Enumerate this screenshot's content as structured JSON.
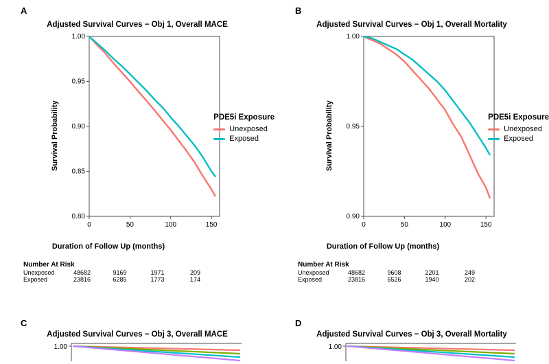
{
  "panels": {
    "A": {
      "letter": "A",
      "title": "Adjusted Survival Curves − Obj 1, Overall MACE",
      "ylabel": "Survival Probability",
      "xlabel": "Duration of Follow Up (months)",
      "ylim": [
        0.8,
        1.0
      ],
      "yticks": [
        0.8,
        0.85,
        0.9,
        0.95,
        1.0
      ],
      "xlim": [
        0,
        160
      ],
      "xticks": [
        0,
        50,
        100,
        150
      ],
      "background_color": "#ffffff",
      "border_color": "#4d4d4d",
      "series": [
        {
          "name": "Unexposed",
          "color": "#f8766d",
          "points": [
            [
              0,
              1.0
            ],
            [
              10,
              0.99
            ],
            [
              20,
              0.981
            ],
            [
              30,
              0.97
            ],
            [
              40,
              0.96
            ],
            [
              50,
              0.95
            ],
            [
              60,
              0.939
            ],
            [
              70,
              0.929
            ],
            [
              80,
              0.918
            ],
            [
              90,
              0.907
            ],
            [
              100,
              0.896
            ],
            [
              110,
              0.884
            ],
            [
              120,
              0.872
            ],
            [
              130,
              0.859
            ],
            [
              140,
              0.844
            ],
            [
              150,
              0.83
            ],
            [
              155,
              0.822
            ]
          ]
        },
        {
          "name": "Exposed",
          "color": "#00bfc4",
          "points": [
            [
              0,
              1.0
            ],
            [
              10,
              0.992
            ],
            [
              20,
              0.984
            ],
            [
              30,
              0.975
            ],
            [
              40,
              0.967
            ],
            [
              50,
              0.958
            ],
            [
              60,
              0.949
            ],
            [
              70,
              0.94
            ],
            [
              80,
              0.93
            ],
            [
              90,
              0.921
            ],
            [
              100,
              0.91
            ],
            [
              110,
              0.9
            ],
            [
              120,
              0.889
            ],
            [
              130,
              0.878
            ],
            [
              140,
              0.865
            ],
            [
              150,
              0.85
            ],
            [
              155,
              0.844
            ]
          ]
        }
      ],
      "risk_title": "Number At Risk",
      "risk": {
        "labels": [
          "Unexposed",
          "Exposed"
        ],
        "rows": [
          [
            "48682",
            "9169",
            "1971",
            "209"
          ],
          [
            "23816",
            "6285",
            "1773",
            "174"
          ]
        ]
      }
    },
    "B": {
      "letter": "B",
      "title": "Adjusted Survival Curves − Obj 1, Overall Mortality",
      "ylabel": "Survival Probability",
      "xlabel": "Duration of Follow Up (months)",
      "ylim": [
        0.9,
        1.0
      ],
      "yticks": [
        0.9,
        0.95,
        1.0
      ],
      "xlim": [
        0,
        160
      ],
      "xticks": [
        0,
        50,
        100,
        150
      ],
      "background_color": "#ffffff",
      "border_color": "#4d4d4d",
      "series": [
        {
          "name": "Unexposed",
          "color": "#f8766d",
          "points": [
            [
              0,
              1.0
            ],
            [
              10,
              0.998
            ],
            [
              20,
              0.996
            ],
            [
              30,
              0.993
            ],
            [
              40,
              0.99
            ],
            [
              50,
              0.986
            ],
            [
              60,
              0.981
            ],
            [
              70,
              0.976
            ],
            [
              80,
              0.971
            ],
            [
              90,
              0.965
            ],
            [
              100,
              0.959
            ],
            [
              110,
              0.951
            ],
            [
              120,
              0.944
            ],
            [
              130,
              0.934
            ],
            [
              140,
              0.924
            ],
            [
              150,
              0.916
            ],
            [
              155,
              0.91
            ]
          ]
        },
        {
          "name": "Exposed",
          "color": "#00bfc4",
          "points": [
            [
              0,
              1.0
            ],
            [
              10,
              0.999
            ],
            [
              20,
              0.997
            ],
            [
              30,
              0.995
            ],
            [
              40,
              0.993
            ],
            [
              50,
              0.99
            ],
            [
              60,
              0.987
            ],
            [
              70,
              0.983
            ],
            [
              80,
              0.979
            ],
            [
              90,
              0.975
            ],
            [
              100,
              0.97
            ],
            [
              110,
              0.964
            ],
            [
              120,
              0.958
            ],
            [
              130,
              0.952
            ],
            [
              140,
              0.945
            ],
            [
              150,
              0.938
            ],
            [
              155,
              0.934
            ]
          ]
        }
      ],
      "risk_title": "Number At Risk",
      "risk": {
        "labels": [
          "Unexposed",
          "Exposed"
        ],
        "rows": [
          [
            "48682",
            "9608",
            "2201",
            "249"
          ],
          [
            "23816",
            "6526",
            "1940",
            "202"
          ]
        ]
      }
    },
    "C": {
      "letter": "C",
      "title": "Adjusted Survival Curves − Obj 3, Overall MACE",
      "ylim": [
        0.975,
        1.0
      ],
      "series_colors": [
        "#f8766d",
        "#7cae00",
        "#00bfc4",
        "#c77cff"
      ]
    },
    "D": {
      "letter": "D",
      "title": "Adjusted Survival Curves − Obj 3, Overall Mortality",
      "ylim": [
        0.975,
        1.0
      ],
      "series_colors": [
        "#f8766d",
        "#7cae00",
        "#00bfc4",
        "#c77cff"
      ]
    }
  },
  "legend": {
    "title": "PDE5i Exposure",
    "items": [
      {
        "label": "Unexposed",
        "color": "#f8766d"
      },
      {
        "label": "Exposed",
        "color": "#00bfc4"
      }
    ]
  }
}
